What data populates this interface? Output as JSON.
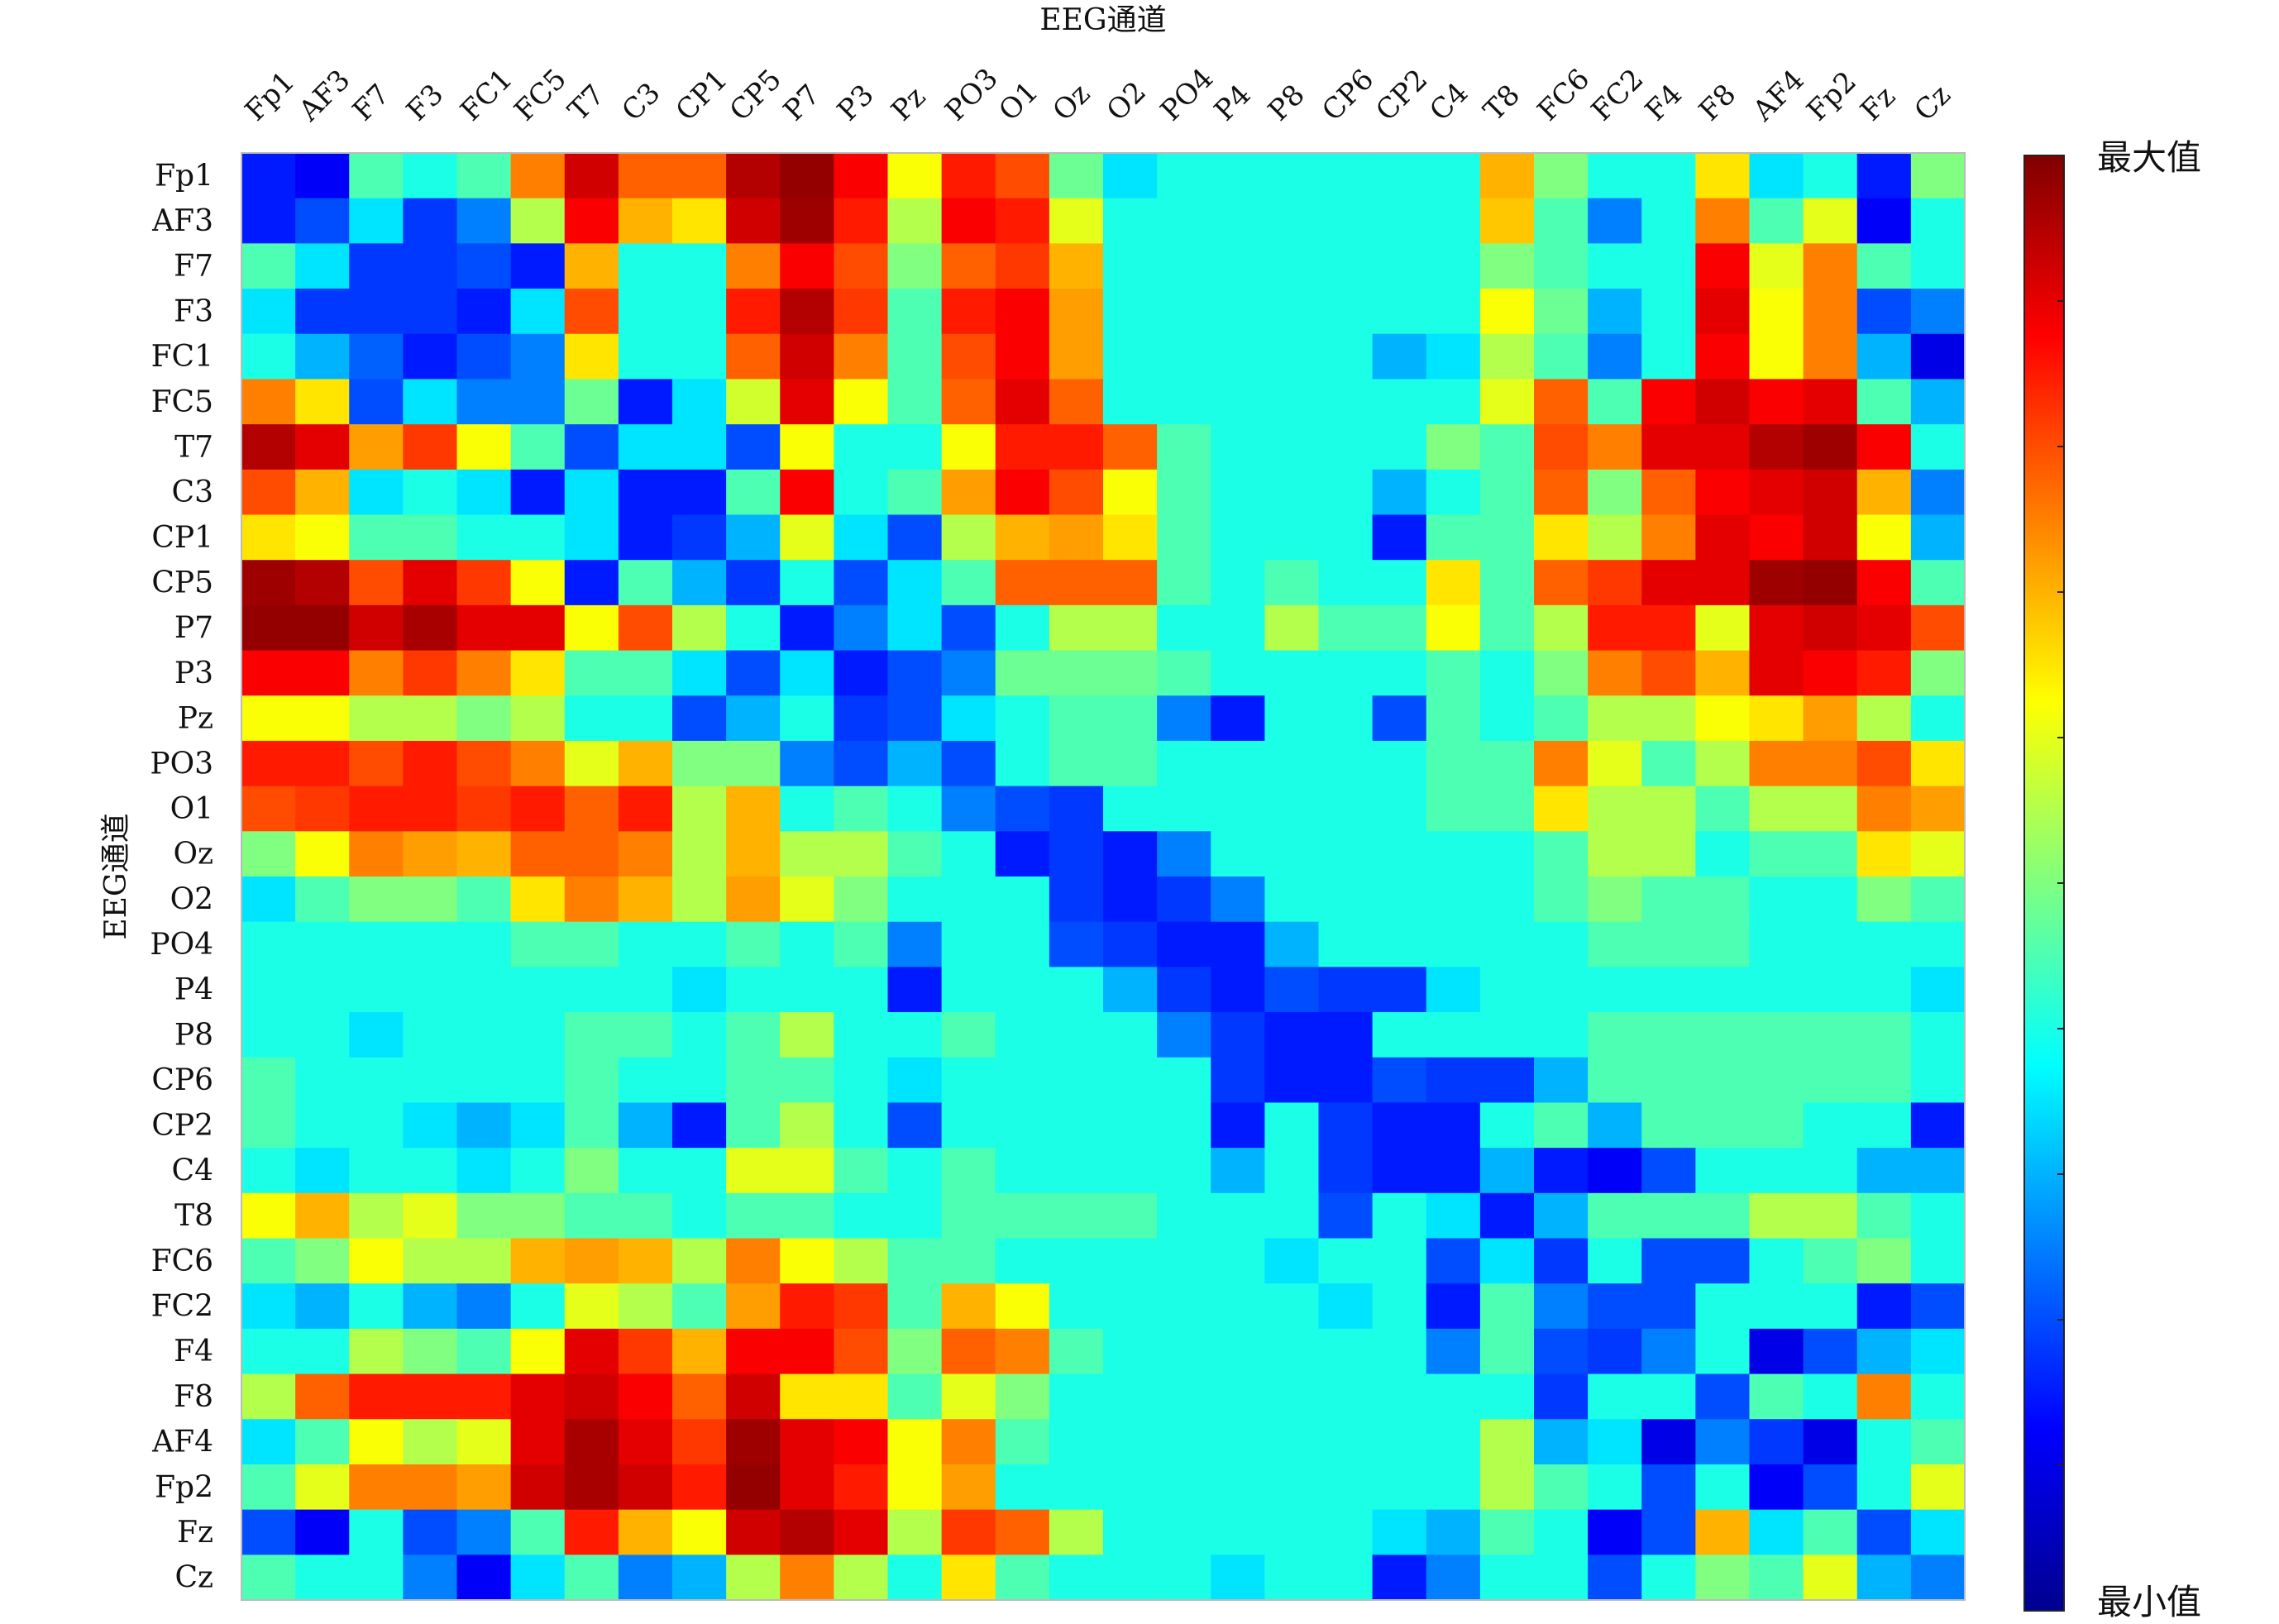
{
  "chart_data": {
    "type": "heatmap",
    "title": "",
    "xlabel": "EEG通道",
    "ylabel": "EEG通道",
    "x_categories": [
      "Fp1",
      "AF3",
      "F7",
      "F3",
      "FC1",
      "FC5",
      "T7",
      "C3",
      "CP1",
      "CP5",
      "P7",
      "P3",
      "Pz",
      "PO3",
      "O1",
      "Oz",
      "O2",
      "PO4",
      "P4",
      "P8",
      "CP6",
      "CP2",
      "C4",
      "T8",
      "FC6",
      "FC2",
      "F4",
      "F8",
      "AF4",
      "Fp2",
      "Fz",
      "Cz"
    ],
    "y_categories": [
      "Fp1",
      "AF3",
      "F7",
      "F3",
      "FC1",
      "FC5",
      "T7",
      "C3",
      "CP1",
      "CP5",
      "P7",
      "P3",
      "Pz",
      "PO3",
      "O1",
      "Oz",
      "O2",
      "PO4",
      "P4",
      "P8",
      "CP6",
      "CP2",
      "C4",
      "T8",
      "FC6",
      "FC2",
      "F4",
      "F8",
      "AF4",
      "Fp2",
      "Fz",
      "Cz"
    ],
    "value_range": [
      0,
      1
    ],
    "colormap": "jet",
    "colorbar": {
      "max_label": "最大值",
      "min_label": "最小值"
    },
    "values": [
      [
        0.15,
        0.12,
        0.45,
        0.4,
        0.45,
        0.75,
        0.92,
        0.78,
        0.78,
        0.95,
        0.98,
        0.88,
        0.62,
        0.85,
        0.8,
        0.48,
        0.35,
        0.4,
        0.4,
        0.4,
        0.4,
        0.4,
        0.4,
        0.7,
        0.5,
        0.4,
        0.4,
        0.65,
        0.35,
        0.4,
        0.15,
        0.5
      ],
      [
        0.15,
        0.2,
        0.35,
        0.18,
        0.25,
        0.55,
        0.88,
        0.7,
        0.65,
        0.92,
        0.97,
        0.85,
        0.55,
        0.88,
        0.85,
        0.6,
        0.4,
        0.4,
        0.4,
        0.4,
        0.4,
        0.4,
        0.4,
        0.68,
        0.45,
        0.25,
        0.4,
        0.75,
        0.45,
        0.6,
        0.12,
        0.4
      ],
      [
        0.45,
        0.35,
        0.18,
        0.18,
        0.2,
        0.15,
        0.7,
        0.4,
        0.4,
        0.75,
        0.88,
        0.8,
        0.5,
        0.78,
        0.82,
        0.7,
        0.4,
        0.4,
        0.4,
        0.4,
        0.4,
        0.4,
        0.4,
        0.5,
        0.45,
        0.4,
        0.4,
        0.88,
        0.6,
        0.75,
        0.45,
        0.4
      ],
      [
        0.35,
        0.18,
        0.18,
        0.18,
        0.15,
        0.35,
        0.8,
        0.4,
        0.4,
        0.85,
        0.95,
        0.82,
        0.45,
        0.85,
        0.88,
        0.72,
        0.4,
        0.4,
        0.4,
        0.4,
        0.4,
        0.4,
        0.4,
        0.62,
        0.48,
        0.3,
        0.4,
        0.9,
        0.62,
        0.75,
        0.2,
        0.25
      ],
      [
        0.4,
        0.3,
        0.22,
        0.15,
        0.2,
        0.25,
        0.65,
        0.4,
        0.4,
        0.78,
        0.92,
        0.75,
        0.45,
        0.8,
        0.88,
        0.72,
        0.4,
        0.4,
        0.4,
        0.4,
        0.4,
        0.3,
        0.35,
        0.55,
        0.45,
        0.25,
        0.4,
        0.88,
        0.62,
        0.75,
        0.3,
        0.1
      ],
      [
        0.75,
        0.65,
        0.2,
        0.35,
        0.25,
        0.25,
        0.48,
        0.15,
        0.35,
        0.58,
        0.9,
        0.62,
        0.45,
        0.78,
        0.9,
        0.78,
        0.4,
        0.4,
        0.4,
        0.4,
        0.4,
        0.4,
        0.4,
        0.6,
        0.78,
        0.45,
        0.88,
        0.92,
        0.88,
        0.9,
        0.45,
        0.3
      ],
      [
        0.95,
        0.9,
        0.72,
        0.82,
        0.62,
        0.45,
        0.2,
        0.35,
        0.35,
        0.2,
        0.62,
        0.4,
        0.4,
        0.62,
        0.85,
        0.85,
        0.78,
        0.45,
        0.4,
        0.4,
        0.4,
        0.4,
        0.5,
        0.45,
        0.8,
        0.75,
        0.9,
        0.9,
        0.95,
        0.97,
        0.88,
        0.4
      ],
      [
        0.8,
        0.7,
        0.35,
        0.4,
        0.35,
        0.15,
        0.35,
        0.15,
        0.15,
        0.45,
        0.88,
        0.4,
        0.45,
        0.72,
        0.88,
        0.8,
        0.62,
        0.45,
        0.4,
        0.4,
        0.4,
        0.3,
        0.4,
        0.45,
        0.78,
        0.5,
        0.78,
        0.88,
        0.9,
        0.92,
        0.7,
        0.25
      ],
      [
        0.65,
        0.62,
        0.45,
        0.45,
        0.4,
        0.4,
        0.35,
        0.15,
        0.18,
        0.3,
        0.6,
        0.35,
        0.2,
        0.55,
        0.7,
        0.72,
        0.65,
        0.45,
        0.4,
        0.4,
        0.4,
        0.15,
        0.45,
        0.45,
        0.65,
        0.55,
        0.75,
        0.9,
        0.88,
        0.92,
        0.62,
        0.3
      ],
      [
        0.97,
        0.95,
        0.8,
        0.9,
        0.82,
        0.62,
        0.15,
        0.45,
        0.3,
        0.18,
        0.4,
        0.2,
        0.35,
        0.45,
        0.78,
        0.78,
        0.78,
        0.45,
        0.4,
        0.45,
        0.4,
        0.4,
        0.65,
        0.45,
        0.78,
        0.82,
        0.9,
        0.9,
        0.97,
        0.98,
        0.88,
        0.45
      ],
      [
        0.98,
        0.98,
        0.92,
        0.96,
        0.9,
        0.9,
        0.62,
        0.8,
        0.55,
        0.4,
        0.15,
        0.25,
        0.35,
        0.2,
        0.4,
        0.55,
        0.55,
        0.4,
        0.4,
        0.55,
        0.45,
        0.45,
        0.62,
        0.45,
        0.55,
        0.85,
        0.85,
        0.6,
        0.9,
        0.92,
        0.9,
        0.8
      ],
      [
        0.88,
        0.88,
        0.75,
        0.82,
        0.75,
        0.65,
        0.45,
        0.45,
        0.35,
        0.2,
        0.35,
        0.15,
        0.2,
        0.25,
        0.48,
        0.48,
        0.48,
        0.45,
        0.4,
        0.4,
        0.4,
        0.4,
        0.45,
        0.4,
        0.5,
        0.75,
        0.8,
        0.7,
        0.9,
        0.88,
        0.85,
        0.5
      ],
      [
        0.62,
        0.62,
        0.55,
        0.55,
        0.5,
        0.55,
        0.4,
        0.4,
        0.2,
        0.3,
        0.4,
        0.18,
        0.2,
        0.35,
        0.4,
        0.45,
        0.45,
        0.25,
        0.15,
        0.4,
        0.4,
        0.2,
        0.45,
        0.4,
        0.45,
        0.55,
        0.55,
        0.62,
        0.65,
        0.72,
        0.55,
        0.4
      ],
      [
        0.85,
        0.85,
        0.8,
        0.85,
        0.8,
        0.75,
        0.6,
        0.7,
        0.5,
        0.5,
        0.25,
        0.2,
        0.3,
        0.2,
        0.4,
        0.45,
        0.45,
        0.4,
        0.4,
        0.4,
        0.4,
        0.4,
        0.45,
        0.45,
        0.75,
        0.6,
        0.45,
        0.55,
        0.75,
        0.75,
        0.8,
        0.65
      ],
      [
        0.8,
        0.82,
        0.85,
        0.85,
        0.82,
        0.85,
        0.78,
        0.85,
        0.55,
        0.7,
        0.4,
        0.45,
        0.4,
        0.25,
        0.2,
        0.18,
        0.4,
        0.4,
        0.4,
        0.4,
        0.4,
        0.4,
        0.45,
        0.45,
        0.65,
        0.55,
        0.55,
        0.45,
        0.55,
        0.55,
        0.75,
        0.72
      ],
      [
        0.5,
        0.62,
        0.75,
        0.72,
        0.7,
        0.78,
        0.78,
        0.75,
        0.55,
        0.7,
        0.55,
        0.55,
        0.45,
        0.4,
        0.15,
        0.18,
        0.15,
        0.25,
        0.4,
        0.4,
        0.4,
        0.4,
        0.4,
        0.4,
        0.45,
        0.55,
        0.55,
        0.4,
        0.45,
        0.45,
        0.65,
        0.6
      ],
      [
        0.35,
        0.45,
        0.5,
        0.5,
        0.45,
        0.65,
        0.75,
        0.7,
        0.55,
        0.72,
        0.6,
        0.5,
        0.4,
        0.4,
        0.4,
        0.18,
        0.15,
        0.18,
        0.25,
        0.4,
        0.4,
        0.4,
        0.4,
        0.4,
        0.45,
        0.5,
        0.45,
        0.45,
        0.4,
        0.4,
        0.5,
        0.45
      ],
      [
        0.4,
        0.4,
        0.4,
        0.4,
        0.4,
        0.45,
        0.45,
        0.4,
        0.4,
        0.45,
        0.4,
        0.45,
        0.25,
        0.4,
        0.4,
        0.2,
        0.18,
        0.15,
        0.15,
        0.3,
        0.4,
        0.4,
        0.4,
        0.4,
        0.4,
        0.45,
        0.45,
        0.45,
        0.4,
        0.4,
        0.4,
        0.4
      ],
      [
        0.4,
        0.4,
        0.4,
        0.4,
        0.4,
        0.4,
        0.4,
        0.4,
        0.35,
        0.4,
        0.4,
        0.4,
        0.15,
        0.4,
        0.4,
        0.4,
        0.3,
        0.18,
        0.15,
        0.2,
        0.18,
        0.18,
        0.35,
        0.4,
        0.4,
        0.4,
        0.4,
        0.4,
        0.4,
        0.4,
        0.4,
        0.35
      ],
      [
        0.4,
        0.4,
        0.35,
        0.4,
        0.4,
        0.4,
        0.45,
        0.45,
        0.4,
        0.45,
        0.55,
        0.4,
        0.4,
        0.45,
        0.4,
        0.4,
        0.4,
        0.25,
        0.18,
        0.15,
        0.15,
        0.4,
        0.4,
        0.4,
        0.4,
        0.45,
        0.45,
        0.45,
        0.45,
        0.45,
        0.45,
        0.4
      ],
      [
        0.45,
        0.4,
        0.4,
        0.4,
        0.4,
        0.4,
        0.45,
        0.4,
        0.4,
        0.45,
        0.45,
        0.4,
        0.35,
        0.4,
        0.4,
        0.4,
        0.4,
        0.4,
        0.18,
        0.15,
        0.15,
        0.2,
        0.18,
        0.18,
        0.3,
        0.45,
        0.45,
        0.45,
        0.45,
        0.45,
        0.45,
        0.4
      ],
      [
        0.45,
        0.4,
        0.4,
        0.35,
        0.3,
        0.35,
        0.45,
        0.3,
        0.15,
        0.45,
        0.55,
        0.4,
        0.2,
        0.4,
        0.4,
        0.4,
        0.4,
        0.4,
        0.15,
        0.4,
        0.18,
        0.15,
        0.15,
        0.4,
        0.45,
        0.3,
        0.45,
        0.45,
        0.45,
        0.4,
        0.4,
        0.15
      ],
      [
        0.4,
        0.35,
        0.4,
        0.4,
        0.35,
        0.4,
        0.5,
        0.4,
        0.4,
        0.6,
        0.6,
        0.45,
        0.4,
        0.45,
        0.4,
        0.4,
        0.4,
        0.4,
        0.3,
        0.4,
        0.18,
        0.15,
        0.15,
        0.3,
        0.15,
        0.12,
        0.2,
        0.4,
        0.4,
        0.4,
        0.3,
        0.3
      ],
      [
        0.62,
        0.7,
        0.55,
        0.6,
        0.5,
        0.5,
        0.45,
        0.45,
        0.4,
        0.45,
        0.45,
        0.4,
        0.4,
        0.45,
        0.45,
        0.45,
        0.45,
        0.4,
        0.4,
        0.4,
        0.2,
        0.4,
        0.35,
        0.15,
        0.3,
        0.45,
        0.45,
        0.45,
        0.55,
        0.55,
        0.45,
        0.4
      ],
      [
        0.45,
        0.5,
        0.62,
        0.55,
        0.55,
        0.7,
        0.72,
        0.7,
        0.55,
        0.75,
        0.62,
        0.55,
        0.45,
        0.45,
        0.4,
        0.4,
        0.4,
        0.4,
        0.4,
        0.35,
        0.4,
        0.4,
        0.2,
        0.35,
        0.18,
        0.4,
        0.2,
        0.2,
        0.4,
        0.45,
        0.5,
        0.4
      ],
      [
        0.35,
        0.3,
        0.4,
        0.3,
        0.25,
        0.4,
        0.6,
        0.55,
        0.45,
        0.72,
        0.85,
        0.82,
        0.45,
        0.7,
        0.62,
        0.4,
        0.4,
        0.4,
        0.4,
        0.4,
        0.35,
        0.4,
        0.15,
        0.45,
        0.25,
        0.2,
        0.2,
        0.4,
        0.4,
        0.4,
        0.15,
        0.2
      ],
      [
        0.4,
        0.4,
        0.55,
        0.5,
        0.45,
        0.62,
        0.9,
        0.82,
        0.7,
        0.88,
        0.88,
        0.8,
        0.5,
        0.78,
        0.75,
        0.45,
        0.4,
        0.4,
        0.4,
        0.4,
        0.4,
        0.4,
        0.25,
        0.45,
        0.2,
        0.18,
        0.25,
        0.4,
        0.1,
        0.2,
        0.3,
        0.35
      ],
      [
        0.55,
        0.78,
        0.85,
        0.85,
        0.85,
        0.9,
        0.92,
        0.88,
        0.78,
        0.92,
        0.65,
        0.65,
        0.45,
        0.6,
        0.5,
        0.4,
        0.4,
        0.4,
        0.4,
        0.4,
        0.4,
        0.4,
        0.4,
        0.4,
        0.18,
        0.4,
        0.4,
        0.2,
        0.45,
        0.4,
        0.75,
        0.4
      ],
      [
        0.35,
        0.45,
        0.62,
        0.55,
        0.6,
        0.9,
        0.96,
        0.9,
        0.82,
        0.97,
        0.9,
        0.88,
        0.62,
        0.75,
        0.45,
        0.4,
        0.4,
        0.4,
        0.4,
        0.4,
        0.4,
        0.4,
        0.4,
        0.55,
        0.3,
        0.35,
        0.1,
        0.25,
        0.18,
        0.1,
        0.4,
        0.45
      ],
      [
        0.45,
        0.6,
        0.75,
        0.75,
        0.72,
        0.92,
        0.96,
        0.92,
        0.85,
        0.98,
        0.9,
        0.85,
        0.62,
        0.72,
        0.4,
        0.4,
        0.4,
        0.4,
        0.4,
        0.4,
        0.4,
        0.4,
        0.4,
        0.55,
        0.45,
        0.4,
        0.2,
        0.4,
        0.12,
        0.2,
        0.4,
        0.6
      ],
      [
        0.2,
        0.12,
        0.4,
        0.2,
        0.25,
        0.45,
        0.85,
        0.7,
        0.62,
        0.92,
        0.95,
        0.9,
        0.55,
        0.82,
        0.78,
        0.55,
        0.4,
        0.4,
        0.4,
        0.4,
        0.4,
        0.35,
        0.3,
        0.45,
        0.4,
        0.12,
        0.2,
        0.7,
        0.35,
        0.45,
        0.2,
        0.35
      ],
      [
        0.45,
        0.4,
        0.4,
        0.25,
        0.12,
        0.35,
        0.45,
        0.25,
        0.3,
        0.55,
        0.75,
        0.55,
        0.4,
        0.65,
        0.45,
        0.4,
        0.4,
        0.4,
        0.35,
        0.4,
        0.4,
        0.15,
        0.25,
        0.4,
        0.4,
        0.2,
        0.4,
        0.5,
        0.45,
        0.6,
        0.3,
        0.25
      ]
    ]
  }
}
